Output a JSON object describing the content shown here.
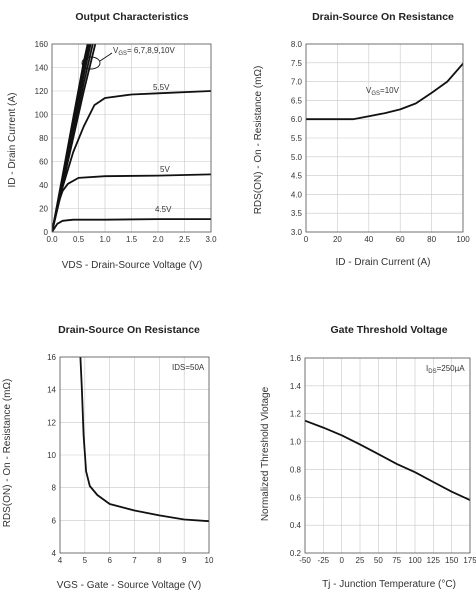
{
  "chart_data": [
    {
      "type": "line",
      "title": "Output Characteristics",
      "xlabel": "VDS - Drain-Source Voltage (V)",
      "ylabel": "ID - Drain Current (A)",
      "xlim": [
        0,
        3.0
      ],
      "ylim": [
        0,
        160
      ],
      "xticks": [
        "0.0",
        "0.5",
        "1.0",
        "1.5",
        "2.0",
        "2.5",
        "3.0"
      ],
      "yticks": [
        "0",
        "20",
        "40",
        "60",
        "80",
        "100",
        "120",
        "140",
        "160"
      ],
      "grid": true,
      "series": [
        {
          "name": "VGS=10V",
          "x": [
            0,
            0.2,
            0.4,
            0.6,
            0.72
          ],
          "y": [
            0,
            48,
            97,
            145,
            170
          ]
        },
        {
          "name": "VGS=9V",
          "x": [
            0,
            0.2,
            0.4,
            0.6,
            0.75
          ],
          "y": [
            0,
            46,
            93,
            140,
            170
          ]
        },
        {
          "name": "VGS=8V",
          "x": [
            0,
            0.2,
            0.4,
            0.6,
            0.78
          ],
          "y": [
            0,
            44,
            89,
            134,
            170
          ]
        },
        {
          "name": "VGS=7V",
          "x": [
            0,
            0.2,
            0.4,
            0.6,
            0.82
          ],
          "y": [
            0,
            42,
            85,
            127,
            170
          ]
        },
        {
          "name": "VGS=6V",
          "x": [
            0,
            0.2,
            0.4,
            0.6,
            0.86
          ],
          "y": [
            0,
            40,
            80,
            120,
            168
          ]
        },
        {
          "name": "VGS=5.5V",
          "x": [
            0,
            0.2,
            0.4,
            0.6,
            0.8,
            1.0,
            1.5,
            2.0,
            3.0
          ],
          "y": [
            0,
            38,
            68,
            90,
            108,
            114,
            117,
            118,
            120
          ]
        },
        {
          "name": "VGS=5V",
          "x": [
            0,
            0.1,
            0.2,
            0.3,
            0.5,
            1.0,
            2.0,
            3.0
          ],
          "y": [
            0,
            22,
            35,
            41,
            46,
            47.5,
            48,
            49
          ]
        },
        {
          "name": "VGS=4.5V",
          "x": [
            0,
            0.1,
            0.2,
            0.4,
            1.0,
            2.0,
            3.0
          ],
          "y": [
            0,
            7,
            9.5,
            10.5,
            10.5,
            11,
            11
          ]
        }
      ],
      "annotations": {
        "vgs_group_label": "V",
        "vgs_group_sub": "GS",
        "vgs_group_values": "= 6,7,8,9,10V",
        "label_55": "5.5V",
        "label_5": "5V",
        "label_45": "4.5V"
      }
    },
    {
      "type": "line",
      "title": "Drain-Source On Resistance",
      "xlabel": "ID - Drain Current (A)",
      "ylabel": "RDS(ON) - On - Resistance (mΩ)",
      "xlim": [
        0,
        100
      ],
      "ylim": [
        3.0,
        8.0
      ],
      "xticks": [
        "0",
        "20",
        "40",
        "60",
        "80",
        "100"
      ],
      "yticks": [
        "3.0",
        "3.5",
        "4.0",
        "4.5",
        "5.0",
        "5.5",
        "6.0",
        "6.5",
        "7.0",
        "7.5",
        "8.0"
      ],
      "grid": true,
      "series": [
        {
          "name": "VGS=10V",
          "x": [
            0,
            10,
            20,
            30,
            40,
            50,
            60,
            70,
            80,
            90,
            100
          ],
          "y": [
            6.0,
            6.0,
            6.0,
            6.0,
            6.08,
            6.16,
            6.26,
            6.42,
            6.7,
            7.0,
            7.48
          ]
        }
      ],
      "annotations": {
        "vgs_label": "V",
        "vgs_sub": "GS",
        "vgs_value": "=10V"
      }
    },
    {
      "type": "line",
      "title": "Drain-Source On Resistance",
      "xlabel": "VGS - Gate - Source Voltage (V)",
      "ylabel": "RDS(ON) - On - Resistance (mΩ)",
      "xlim": [
        4,
        10
      ],
      "ylim": [
        4,
        16
      ],
      "xticks": [
        "4",
        "5",
        "6",
        "7",
        "8",
        "9",
        "10"
      ],
      "yticks": [
        "4",
        "6",
        "8",
        "10",
        "12",
        "14",
        "16"
      ],
      "grid": true,
      "series": [
        {
          "name": "IDS=50A",
          "x": [
            4.82,
            4.88,
            4.95,
            5.05,
            5.2,
            5.5,
            6.0,
            7.0,
            8.0,
            9.0,
            10.0
          ],
          "y": [
            16,
            14,
            11.2,
            9.0,
            8.1,
            7.55,
            7.0,
            6.6,
            6.3,
            6.05,
            5.95
          ]
        }
      ],
      "annotations": {
        "ids_label": "IDS=50A"
      }
    },
    {
      "type": "line",
      "title": "Gate Threshold Voltage",
      "xlabel": "Tj - Junction Temperature (°C)",
      "ylabel": "Normalized Threshold Vlotage",
      "xlim": [
        -50,
        175
      ],
      "ylim": [
        0.2,
        1.6
      ],
      "xticks": [
        "-50",
        "-25",
        "0",
        "25",
        "50",
        "75",
        "100",
        "125",
        "150",
        "175"
      ],
      "yticks": [
        "0.2",
        "0.4",
        "0.6",
        "0.8",
        "1.0",
        "1.2",
        "1.4",
        "1.6"
      ],
      "grid": true,
      "series": [
        {
          "name": "IDS=250µA",
          "x": [
            -50,
            -25,
            0,
            25,
            50,
            75,
            100,
            125,
            150,
            175
          ],
          "y": [
            1.15,
            1.1,
            1.045,
            0.98,
            0.91,
            0.84,
            0.78,
            0.71,
            0.64,
            0.58
          ]
        }
      ],
      "annotations": {
        "ids_label": "I",
        "ids_sub": "DS",
        "ids_value": "=250µA"
      }
    }
  ]
}
